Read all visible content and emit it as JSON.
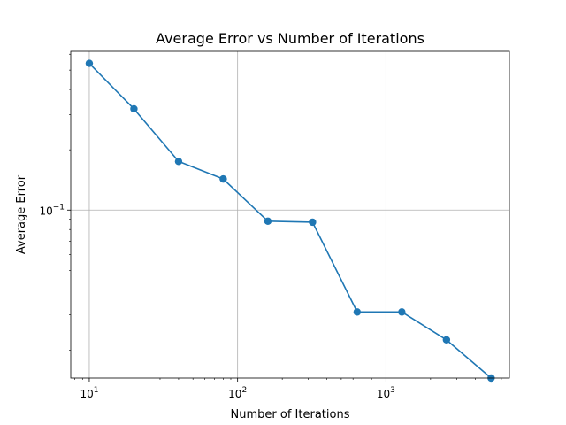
{
  "chart_data": {
    "type": "line",
    "title": "Average Error vs Number of Iterations",
    "xlabel": "Number of Iterations",
    "ylabel": "Average Error",
    "x_scale": "log",
    "y_scale": "log",
    "grid": true,
    "xlim": [
      7.5,
      6800
    ],
    "ylim": [
      0.0145,
      0.62
    ],
    "x_ticks": [
      {
        "value": 10,
        "label": "10",
        "exp": "1"
      },
      {
        "value": 100,
        "label": "10",
        "exp": "2"
      },
      {
        "value": 1000,
        "label": "10",
        "exp": "3"
      }
    ],
    "y_ticks": [
      {
        "value": 0.1,
        "label": "10",
        "exp": "−1"
      }
    ],
    "series": [
      {
        "color": "#1f77b4",
        "x": [
          10,
          20,
          40,
          80,
          160,
          320,
          640,
          1280,
          2560,
          5120
        ],
        "y": [
          0.54,
          0.32,
          0.175,
          0.143,
          0.088,
          0.087,
          0.031,
          0.031,
          0.0225,
          0.0145
        ]
      }
    ]
  }
}
